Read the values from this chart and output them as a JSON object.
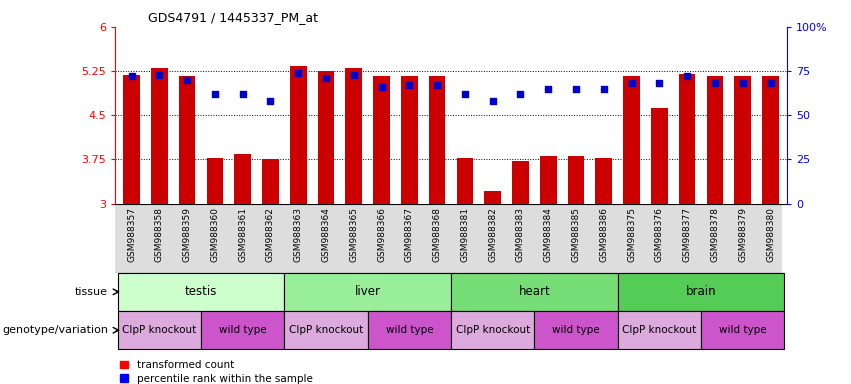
{
  "title": "GDS4791 / 1445337_PM_at",
  "samples": [
    "GSM988357",
    "GSM988358",
    "GSM988359",
    "GSM988360",
    "GSM988361",
    "GSM988362",
    "GSM988363",
    "GSM988364",
    "GSM988365",
    "GSM988366",
    "GSM988367",
    "GSM988368",
    "GSM988381",
    "GSM988382",
    "GSM988383",
    "GSM988384",
    "GSM988385",
    "GSM988386",
    "GSM988375",
    "GSM988376",
    "GSM988377",
    "GSM988378",
    "GSM988379",
    "GSM988380"
  ],
  "bar_values": [
    5.18,
    5.3,
    5.17,
    3.78,
    3.84,
    3.75,
    5.33,
    5.25,
    5.3,
    5.17,
    5.17,
    5.17,
    3.78,
    3.22,
    3.72,
    3.8,
    3.8,
    3.78,
    5.17,
    4.63,
    5.2,
    5.17,
    5.17,
    5.17
  ],
  "dot_values": [
    72,
    73,
    70,
    62,
    62,
    58,
    74,
    71,
    73,
    66,
    67,
    67,
    62,
    58,
    62,
    65,
    65,
    65,
    68,
    68,
    72,
    68,
    68,
    68
  ],
  "tissues": [
    {
      "label": "testis",
      "start": 0,
      "end": 6,
      "color": "#ccffcc"
    },
    {
      "label": "liver",
      "start": 6,
      "end": 12,
      "color": "#99ee99"
    },
    {
      "label": "heart",
      "start": 12,
      "end": 18,
      "color": "#77dd77"
    },
    {
      "label": "brain",
      "start": 18,
      "end": 24,
      "color": "#55cc55"
    }
  ],
  "genotypes": [
    {
      "label": "ClpP knockout",
      "start": 0,
      "end": 3,
      "color": "#ddaadd"
    },
    {
      "label": "wild type",
      "start": 3,
      "end": 6,
      "color": "#dd55dd"
    },
    {
      "label": "ClpP knockout",
      "start": 6,
      "end": 9,
      "color": "#ddaadd"
    },
    {
      "label": "wild type",
      "start": 9,
      "end": 12,
      "color": "#dd55dd"
    },
    {
      "label": "ClpP knockout",
      "start": 12,
      "end": 15,
      "color": "#ddaadd"
    },
    {
      "label": "wild type",
      "start": 15,
      "end": 18,
      "color": "#dd55dd"
    },
    {
      "label": "ClpP knockout",
      "start": 18,
      "end": 21,
      "color": "#ddaadd"
    },
    {
      "label": "wild type",
      "start": 21,
      "end": 24,
      "color": "#dd55dd"
    }
  ],
  "bar_color": "#cc0000",
  "dot_color": "#0000cc",
  "ylim_left": [
    3.0,
    6.0
  ],
  "ylim_right": [
    0,
    100
  ],
  "yticks_left": [
    3.0,
    3.75,
    4.5,
    5.25,
    6.0
  ],
  "yticks_right": [
    0,
    25,
    50,
    75,
    100
  ],
  "ytick_labels_left": [
    "3",
    "3.75",
    "4.5",
    "5.25",
    "6"
  ],
  "ytick_labels_right": [
    "0",
    "25",
    "50",
    "75",
    "100%"
  ],
  "hlines": [
    3.75,
    4.5,
    5.25
  ],
  "tissue_row_label": "tissue",
  "genotype_row_label": "genotype/variation",
  "legend_bar": "transformed count",
  "legend_dot": "percentile rank within the sample",
  "bar_width": 0.6
}
